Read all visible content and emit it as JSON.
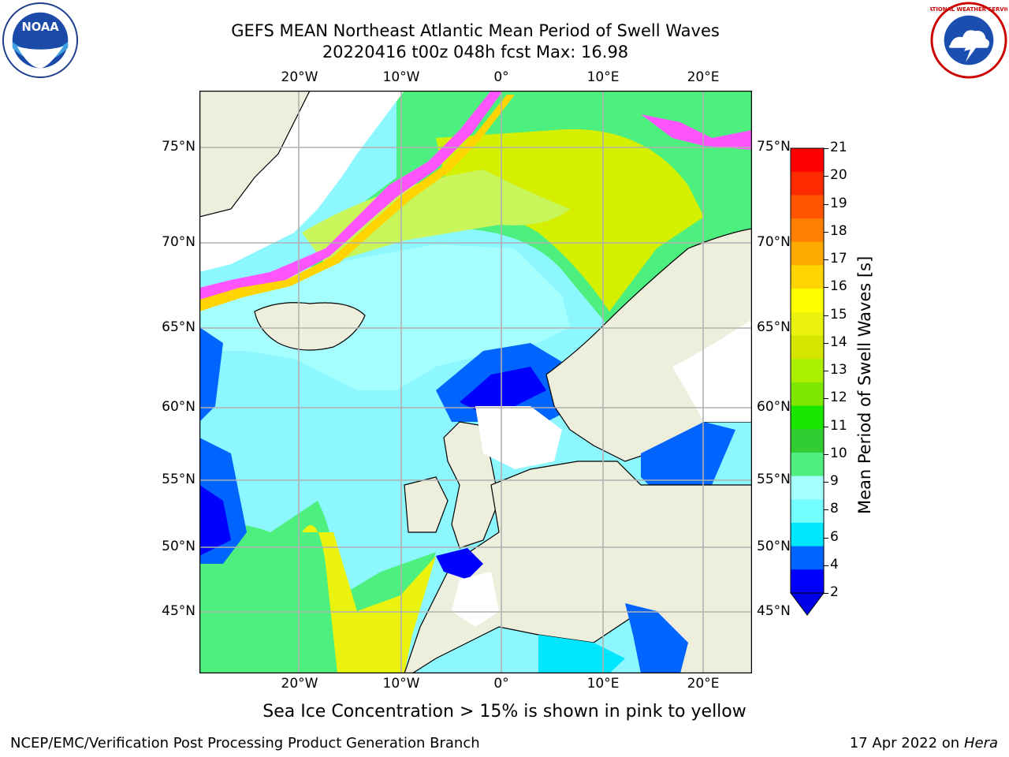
{
  "title": {
    "line1": "GEFS MEAN Northeast Atlantic Mean Period of Swell Waves",
    "line2": "20220416 t00z 048h fcst   Max: 16.98"
  },
  "logos": {
    "left": "noaa-logo",
    "left_text": "NOAA",
    "right": "nws-logo",
    "right_text": "NATIONAL WEATHER SERVICE"
  },
  "map": {
    "lon_labels": [
      "20°W",
      "10°W",
      "0°",
      "10°E",
      "20°E"
    ],
    "lat_labels": [
      "75°N",
      "70°N",
      "65°N",
      "60°N",
      "55°N",
      "50°N",
      "45°N"
    ],
    "grid": true
  },
  "colorbar": {
    "label": "Mean Period of Swell Waves [s]",
    "ticks": [
      "21",
      "20",
      "19",
      "18",
      "17",
      "16",
      "15",
      "14",
      "13",
      "12",
      "11",
      "10",
      "9",
      "8",
      "6",
      "4",
      "2"
    ],
    "colors": [
      "#ff0000",
      "#ff2a00",
      "#ff5500",
      "#ff7f00",
      "#ffaa00",
      "#ffd400",
      "#ffff00",
      "#eaf20d",
      "#d4e600",
      "#aaf000",
      "#7fe600",
      "#1ae600",
      "#32cd32",
      "#4df07f",
      "#a6ffff",
      "#73ffff",
      "#00e6ff",
      "#0064ff",
      "#0000ff"
    ],
    "extend_color": "#0000e6"
  },
  "note": "Sea Ice Concentration > 15% is shown in pink to yellow",
  "footer": {
    "left": "NCEP/EMC/Verification Post Processing Product Generation Branch",
    "right_date": "17 Apr 2022 on ",
    "right_host": "Hera"
  }
}
